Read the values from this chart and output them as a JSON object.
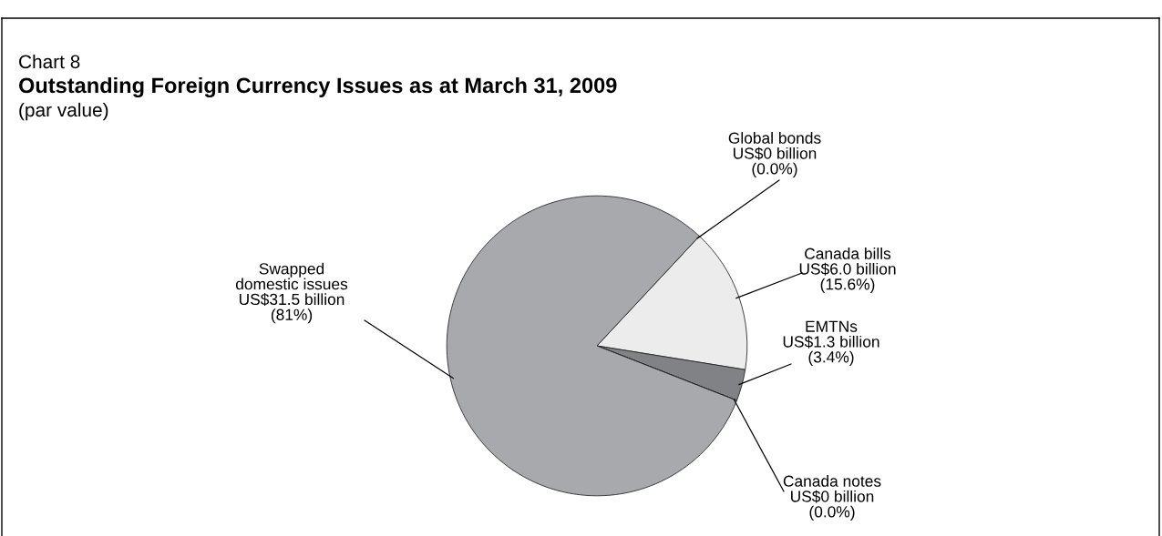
{
  "chart_data": {
    "type": "pie",
    "title": "Outstanding Foreign Currency Issues as at March 31, 2009",
    "subtitle": "(par value)",
    "annotations": [
      "Chart 8"
    ],
    "categories": [
      "Global bonds",
      "Canada bills",
      "EMTNs",
      "Canada notes",
      "Swapped\ndomestic issues"
    ],
    "values": [
      0,
      15.6,
      3.4,
      0,
      81
    ],
    "value_labels": [
      "US$0 billion\n(0.0%)",
      "US$6.0 billion\n(15.6%)",
      "US$1.3 billion\n(3.4%)",
      "US$0 billion\n(0.0%)",
      "US$31.5 billion\n(81%)"
    ],
    "colors": [
      "#6d6e71",
      "#ececec",
      "#808285",
      "#231f20",
      "#a7a9ac"
    ],
    "legend": false
  }
}
